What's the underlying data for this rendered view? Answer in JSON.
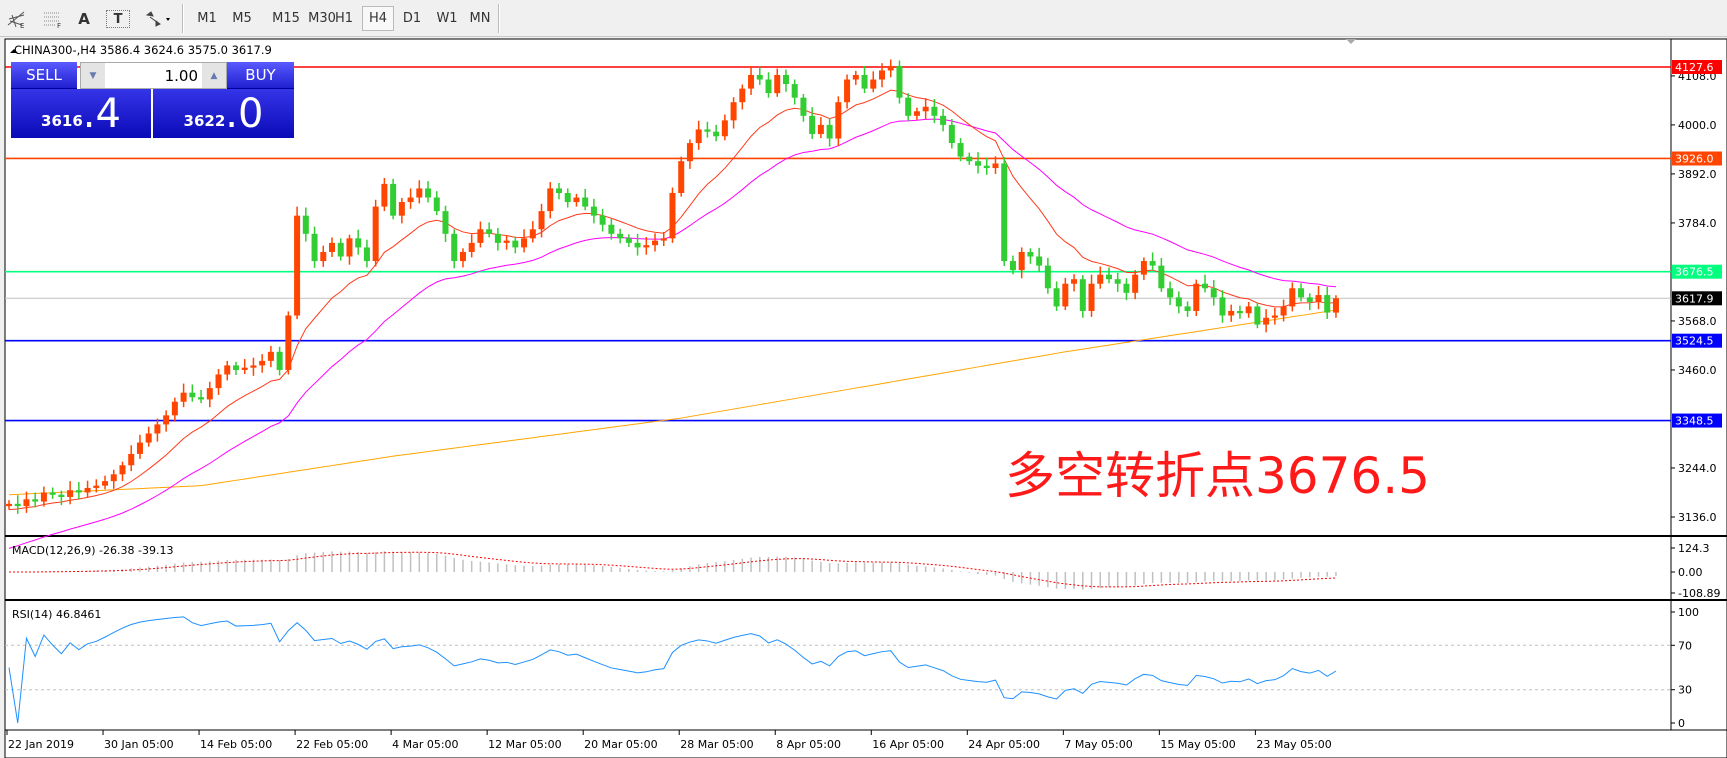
{
  "toolbar": {
    "icons": [
      "fibonacci-fan-icon",
      "fibonacci-icon",
      "text-icon",
      "text-label-icon",
      "arrows-icon"
    ],
    "text_icon": "A",
    "label_icon": "T",
    "timeframes": [
      "M1",
      "M5",
      "M15",
      "M30",
      "H1",
      "H4",
      "D1",
      "W1",
      "MN"
    ],
    "selected": "H4"
  },
  "chart": {
    "title": "CHINA300-,H4  3586.4 3624.6 3575.0 3617.9"
  },
  "trade": {
    "sell_label": "SELL",
    "buy_label": "BUY",
    "lot": "1.00",
    "sell_small": "3616",
    "sell_big": ".4",
    "buy_small": "3622",
    "buy_big": ".0"
  },
  "annotation": "多空转折点3676.5",
  "chart_data": [
    {
      "type": "candlestick",
      "symbol": "CHINA300-",
      "timeframe": "H4",
      "ohlc_last": {
        "open": 3586.4,
        "high": 3624.6,
        "low": 3575.0,
        "close": 3617.9
      },
      "closes": [
        3165,
        3160,
        3175,
        3170,
        3190,
        3185,
        3180,
        3195,
        3190,
        3200,
        3205,
        3215,
        3230,
        3250,
        3275,
        3300,
        3320,
        3340,
        3360,
        3390,
        3410,
        3400,
        3395,
        3420,
        3450,
        3470,
        3460,
        3465,
        3470,
        3480,
        3500,
        3460,
        3580,
        3800,
        3760,
        3700,
        3720,
        3740,
        3710,
        3750,
        3730,
        3700,
        3820,
        3870,
        3800,
        3830,
        3840,
        3860,
        3840,
        3810,
        3760,
        3700,
        3720,
        3740,
        3770,
        3760,
        3740,
        3745,
        3730,
        3750,
        3770,
        3810,
        3860,
        3850,
        3830,
        3840,
        3820,
        3800,
        3780,
        3760,
        3750,
        3740,
        3730,
        3735,
        3745,
        3750,
        3850,
        3920,
        3960,
        3990,
        3985,
        3975,
        4010,
        4050,
        4080,
        4110,
        4100,
        4070,
        4110,
        4090,
        4060,
        4020,
        3980,
        4000,
        3970,
        4050,
        4100,
        4110,
        4080,
        4100,
        4120,
        4130,
        4060,
        4020,
        4030,
        4040,
        4020,
        4000,
        3960,
        3930,
        3920,
        3910,
        3905,
        3915,
        3700,
        3680,
        3720,
        3710,
        3690,
        3640,
        3600,
        3650,
        3660,
        3590,
        3650,
        3670,
        3660,
        3650,
        3630,
        3670,
        3700,
        3690,
        3640,
        3620,
        3600,
        3590,
        3650,
        3640,
        3620,
        3580,
        3590,
        3585,
        3600,
        3560,
        3575,
        3580,
        3600,
        3640,
        3620,
        3610,
        3625,
        3586.4,
        3617.9
      ],
      "ylim": [
        3100,
        4150
      ],
      "price_ticks": [
        "4108.0",
        "4000.0",
        "3892.0",
        "3784.0",
        "3568.0",
        "3460.0",
        "3244.0",
        "3136.0"
      ],
      "x_labels": [
        "22 Jan 2019",
        "30 Jan 05:00",
        "14 Feb 05:00",
        "22 Feb 05:00",
        "4 Mar 05:00",
        "12 Mar 05:00",
        "20 Mar 05:00",
        "28 Mar 05:00",
        "8 Apr 05:00",
        "16 Apr 05:00",
        "24 Apr 05:00",
        "7 May 05:00",
        "15 May 05:00",
        "23 May 05:00"
      ],
      "colors": {
        "up": "#ff4500",
        "down": "#32cd32",
        "ma_fast": "#ff3a1a",
        "ma_mid": "#ff00ff",
        "ma_slow": "#ffa500"
      },
      "ma_slow_points": [
        [
          0,
          3185
        ],
        [
          22,
          3205
        ],
        [
          44,
          3270
        ],
        [
          77,
          3354
        ],
        [
          100,
          3430
        ],
        [
          121,
          3500
        ],
        [
          152,
          3592
        ]
      ],
      "levels": [
        {
          "price": 4127.6,
          "label": "4127.6",
          "color": "#ff0000"
        },
        {
          "price": 3926.0,
          "label": "3926.0",
          "color": "#ff4500"
        },
        {
          "price": 3676.5,
          "label": "3676.5",
          "color": "#00ff7f"
        },
        {
          "price": 3617.9,
          "label": "3617.9",
          "color": "#c0c0c0",
          "tag": "#000000"
        },
        {
          "price": 3524.5,
          "label": "3524.5",
          "color": "#0000ff"
        },
        {
          "price": 3348.5,
          "label": "3348.5",
          "color": "#0000ff"
        }
      ]
    },
    {
      "type": "macd",
      "title": "MACD(12,26,9) -26.38 -39.13",
      "ticks": [
        "124.3",
        "0.00",
        "-108.89"
      ],
      "ylim": [
        -108.89,
        124.3
      ]
    },
    {
      "type": "rsi",
      "title": "RSI(14) 46.8461",
      "ticks": [
        "100",
        "70",
        "30",
        "0"
      ],
      "levels": [
        70,
        30
      ],
      "ylim": [
        0,
        100
      ],
      "color": "#1e90ff"
    }
  ]
}
